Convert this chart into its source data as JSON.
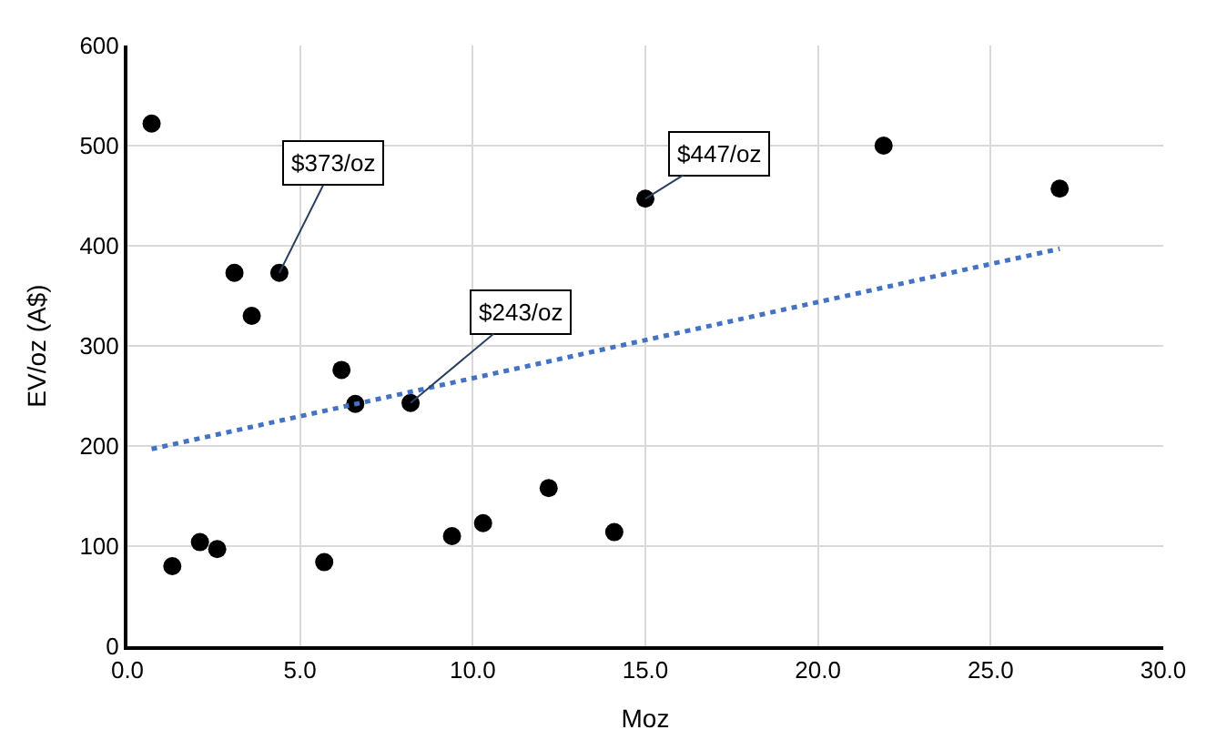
{
  "chart_data": {
    "type": "scatter",
    "xlabel": "Moz",
    "ylabel": "EV/oz (A$)",
    "xlim": [
      0,
      30
    ],
    "ylim": [
      0,
      600
    ],
    "xticks": [
      {
        "value": 0,
        "label": "0.0"
      },
      {
        "value": 5,
        "label": "5.0"
      },
      {
        "value": 10,
        "label": "10.0"
      },
      {
        "value": 15,
        "label": "15.0"
      },
      {
        "value": 20,
        "label": "20.0"
      },
      {
        "value": 25,
        "label": "25.0"
      },
      {
        "value": 30,
        "label": "30.0"
      }
    ],
    "yticks": [
      0,
      100,
      200,
      300,
      400,
      500,
      600
    ],
    "grid": true,
    "marker": "circle",
    "series": [
      {
        "color": "#000000",
        "x": [
          0.7,
          1.3,
          2.1,
          2.6,
          3.1,
          3.6,
          4.4,
          5.7,
          6.2,
          6.6,
          8.2,
          9.4,
          10.3,
          12.2,
          14.1,
          15.0,
          21.9,
          27.0
        ],
        "values": [
          522,
          80,
          104,
          97,
          373,
          330,
          373,
          84,
          276,
          242,
          243,
          110,
          123,
          158,
          114,
          447,
          500,
          457
        ]
      },
      {
        "type": "line",
        "color": "#4472c4",
        "line_style": "dotted",
        "marker": "none",
        "x": [
          0.7,
          27.0
        ],
        "values": [
          197,
          397
        ]
      }
    ],
    "annotations": [
      {
        "text": "$373/oz",
        "x": 4.4,
        "y": 373
      },
      {
        "text": "$243/oz",
        "x": 8.2,
        "y": 243
      },
      {
        "text": "$447/oz",
        "x": 15.0,
        "y": 447
      }
    ]
  }
}
